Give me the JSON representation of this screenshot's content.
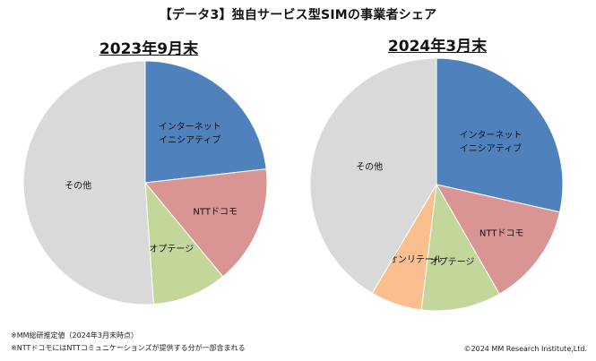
{
  "title": "【データ3】独自サービス型SIMの事業者シェア",
  "notes": [
    "※MM総研推定値（2024年3月末時点）",
    "※NTTドコモにはNTTコミュニケーションズが提供する分が一部含まれる"
  ],
  "copyright": "©2024 MM Research Institute,Ltd.",
  "chart_data": [
    {
      "type": "pie",
      "title": "2023年9月末",
      "start_angle": "12 o'clock, clockwise",
      "slices": [
        {
          "label": "インターネットイニシアティブ",
          "lines": [
            "インターネット",
            "イニシアティブ"
          ],
          "value": 23.2,
          "color": "#4f81bd"
        },
        {
          "label": "NTTドコモ",
          "lines": [
            "NTTドコモ"
          ],
          "value": 15.8,
          "color": "#d99594"
        },
        {
          "label": "オプテージ",
          "lines": [
            "オプテージ"
          ],
          "value": 9.9,
          "color": "#c4d79b"
        },
        {
          "label": "その他",
          "lines": [
            "その他"
          ],
          "value": 51.1,
          "color": "#d9d9d9"
        }
      ]
    },
    {
      "type": "pie",
      "title": "2024年3月末",
      "start_angle": "12 o'clock, clockwise",
      "slices": [
        {
          "label": "インターネットイニシアティブ",
          "lines": [
            "インターネット",
            "イニシアティブ"
          ],
          "value": 28.5,
          "color": "#4f81bd"
        },
        {
          "label": "NTTドコモ",
          "lines": [
            "NTTドコモ"
          ],
          "value": 13.2,
          "color": "#d99594"
        },
        {
          "label": "オプテージ",
          "lines": [
            "オプテージ"
          ],
          "value": 10.2,
          "color": "#c4d79b"
        },
        {
          "label": "イオンリテール",
          "lines": [
            "イオンリテール"
          ],
          "value": 6.6,
          "color": "#fabf8f"
        },
        {
          "label": "その他",
          "lines": [
            "その他"
          ],
          "value": 41.5,
          "color": "#d9d9d9"
        }
      ]
    }
  ]
}
